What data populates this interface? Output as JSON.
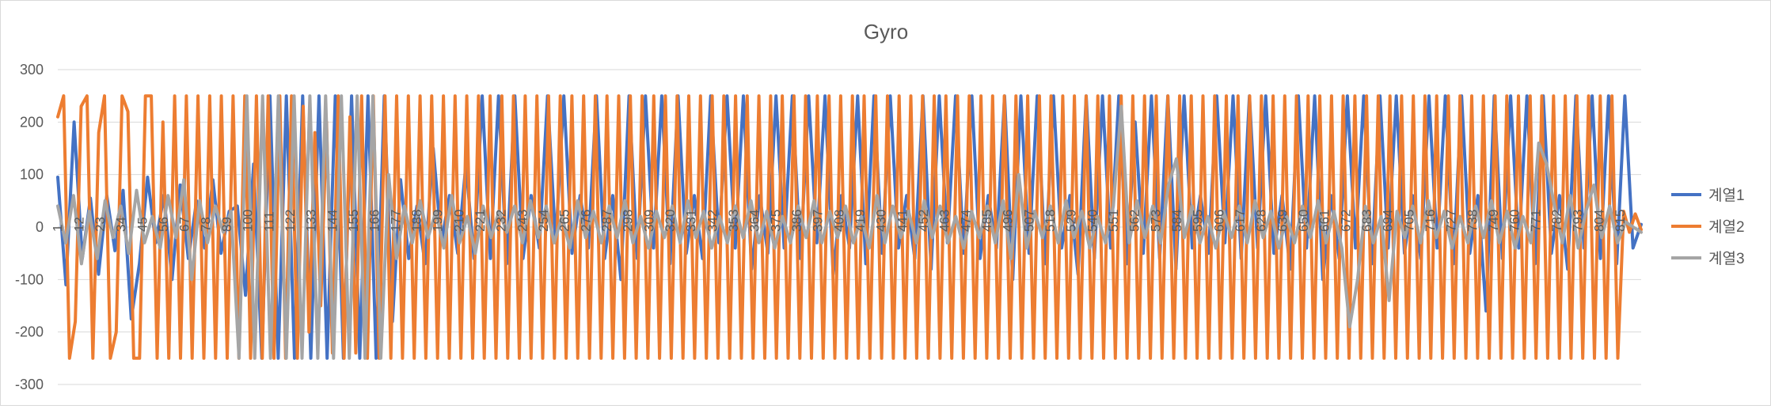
{
  "chart_data": {
    "type": "line",
    "title": "Gyro",
    "xlabel": "",
    "ylabel": "",
    "ylim": [
      -300,
      300
    ],
    "yticks": [
      300,
      200,
      100,
      0,
      -100,
      -200,
      -300
    ],
    "grid": true,
    "legend_position": "right",
    "x_count": 825,
    "x_tick_labels": [
      1,
      12,
      23,
      34,
      45,
      56,
      67,
      78,
      89,
      100,
      111,
      122,
      133,
      144,
      155,
      166,
      177,
      188,
      199,
      210,
      221,
      232,
      243,
      254,
      265,
      276,
      287,
      298,
      309,
      320,
      331,
      342,
      353,
      364,
      375,
      386,
      397,
      408,
      419,
      430,
      441,
      452,
      463,
      474,
      485,
      496,
      507,
      518,
      529,
      540,
      551,
      562,
      573,
      584,
      595,
      606,
      617,
      628,
      639,
      650,
      661,
      672,
      683,
      694,
      705,
      716,
      727,
      738,
      749,
      760,
      771,
      782,
      793,
      804,
      815
    ],
    "series": [
      {
        "name": "계열1",
        "color": "#4472c4",
        "values": [
          95,
          -110,
          200,
          -60,
          55,
          -90,
          60,
          -45,
          70,
          -175,
          -70,
          95,
          -30,
          60,
          -100,
          80,
          -60,
          50,
          -40,
          90,
          -50,
          30,
          40,
          -130,
          120,
          -250,
          250,
          -250,
          250,
          -250,
          250,
          -250,
          250,
          -250,
          250,
          -250,
          250,
          -250,
          250,
          -250,
          250,
          -180,
          90,
          -60,
          40,
          -70,
          150,
          -30,
          60,
          -50,
          120,
          -60,
          250,
          -60,
          250,
          -70,
          250,
          -60,
          60,
          -40,
          250,
          -30,
          250,
          -50,
          60,
          -40,
          250,
          -60,
          60,
          -100,
          250,
          -60,
          250,
          -40,
          250,
          -70,
          250,
          -50,
          60,
          -60,
          250,
          -30,
          250,
          -40,
          250,
          -80,
          60,
          -50,
          250,
          -40,
          250,
          -60,
          250,
          -30,
          250,
          -90,
          60,
          -40,
          250,
          -70,
          250,
          -50,
          250,
          -40,
          60,
          -60,
          250,
          -80,
          250,
          -30,
          250,
          -50,
          250,
          -60,
          60,
          -40,
          250,
          -100,
          250,
          -50,
          250,
          -70,
          250,
          -40,
          60,
          -90,
          250,
          -60,
          250,
          -40,
          250,
          -70,
          200,
          -50,
          250,
          -60,
          250,
          -80,
          250,
          -40,
          60,
          -50,
          250,
          -30,
          250,
          -60,
          250,
          -40,
          250,
          -50,
          60,
          -80,
          250,
          -40,
          250,
          -100,
          60,
          -60,
          250,
          -40,
          250,
          -70,
          250,
          -40,
          250,
          -50,
          60,
          -60,
          250,
          -40,
          250,
          -70,
          250,
          -50,
          60,
          -160,
          250,
          -60,
          250,
          -40,
          250,
          -70,
          250,
          -50,
          60,
          -80,
          250,
          -40,
          250,
          -60,
          250,
          -70,
          250,
          -40,
          5
        ],
        "source_note": "per-sample values down-sampled for rendering"
      },
      {
        "name": "계열2",
        "color": "#ed7d31",
        "values": [
          210,
          250,
          -250,
          -180,
          230,
          250,
          -250,
          180,
          250,
          -250,
          -200,
          250,
          220,
          -250,
          -250,
          250,
          250,
          -250,
          200,
          -250,
          250,
          -250,
          250,
          -250,
          250,
          -250,
          250,
          -250,
          250,
          -250,
          250,
          -250,
          250,
          -250,
          250,
          -250,
          250,
          -250,
          250,
          -250,
          250,
          -250,
          230,
          -200,
          180,
          -150,
          200,
          -240,
          250,
          -250,
          210,
          -240,
          250,
          -250,
          250,
          -250,
          250,
          -250,
          250,
          -250,
          250,
          -250,
          250,
          -250,
          250,
          -250,
          250,
          -250,
          250,
          -250,
          250,
          -250,
          250,
          -250,
          250,
          -250,
          250,
          -250,
          250,
          -250,
          250,
          -250,
          250,
          -250,
          250,
          -250,
          250,
          -250,
          250,
          -250,
          250,
          -250,
          250,
          -250,
          250,
          -250,
          250,
          -250,
          250,
          -250,
          250,
          -250,
          250,
          -250,
          250,
          -250,
          250,
          -250,
          250,
          -250,
          250,
          -250,
          250,
          -250,
          250,
          -250,
          250,
          -250,
          250,
          -250,
          250,
          -250,
          250,
          -250,
          250,
          -250,
          250,
          -250,
          250,
          -250,
          250,
          -250,
          250,
          -250,
          250,
          -250,
          250,
          -250,
          250,
          -250,
          250,
          -250,
          250,
          -250,
          250,
          -250,
          250,
          -250,
          250,
          -250,
          250,
          -250,
          250,
          -250,
          250,
          -250,
          250,
          -250,
          250,
          -250,
          250,
          -250,
          250,
          -250,
          250,
          -250,
          250,
          -250,
          250,
          -250,
          250,
          -250,
          250,
          -250,
          250,
          -250,
          250,
          -250,
          250,
          -250,
          250,
          -250,
          250,
          -250,
          250,
          -250,
          250,
          -250,
          250,
          -250,
          250,
          -250,
          250,
          -250,
          250,
          -250,
          250,
          -250,
          250,
          -250,
          250,
          -250,
          250,
          -250,
          250,
          -250,
          250,
          -250,
          250,
          -250,
          250,
          -250,
          250,
          -250,
          250,
          -250,
          250,
          -250,
          250,
          -250,
          250,
          -250,
          250,
          -250,
          250,
          -250,
          250,
          -250,
          250,
          -250,
          250,
          -250,
          250,
          -250,
          250,
          -250,
          250,
          -250,
          250,
          -250,
          250,
          -250,
          250,
          -250,
          250,
          -250,
          250,
          -250,
          250,
          -250,
          250,
          -250,
          250,
          -250,
          250,
          -250,
          250,
          -250,
          250,
          -250,
          250,
          -250,
          250,
          -250,
          250,
          -250,
          250,
          -250,
          30,
          -10,
          25,
          -5
        ]
      },
      {
        "name": "계열3",
        "color": "#a5a5a5",
        "values": [
          40,
          -30,
          60,
          -70,
          30,
          -60,
          50,
          -20,
          40,
          -50,
          70,
          -30,
          20,
          -40,
          60,
          -20,
          90,
          -100,
          50,
          -30,
          40,
          -10,
          30,
          -250,
          250,
          -250,
          250,
          -250,
          250,
          -250,
          250,
          -250,
          250,
          -250,
          250,
          -250,
          250,
          -250,
          250,
          -250,
          250,
          -250,
          100,
          -60,
          40,
          -30,
          50,
          -20,
          30,
          -40,
          60,
          -30,
          20,
          -50,
          40,
          -20,
          30,
          -10,
          40,
          -30,
          50,
          -20,
          40,
          -30,
          20,
          -40,
          50,
          -20,
          30,
          -30,
          40,
          -20,
          50,
          -30,
          20,
          -40,
          30,
          -20,
          40,
          -30,
          50,
          -20,
          30,
          -40,
          20,
          -30,
          40,
          -20,
          50,
          -30,
          30,
          -40,
          20,
          -30,
          40,
          -20,
          50,
          -30,
          30,
          -20,
          40,
          -30,
          20,
          -40,
          60,
          -30,
          40,
          -20,
          30,
          -30,
          50,
          -20,
          40,
          -30,
          20,
          -40,
          30,
          -20,
          40,
          -30,
          50,
          -60,
          100,
          -40,
          30,
          -20,
          40,
          -30,
          50,
          -20,
          30,
          -40,
          20,
          -30,
          40,
          230,
          -30,
          50,
          -20,
          40,
          -30,
          80,
          130,
          -20,
          40,
          -30,
          20,
          -40,
          30,
          -20,
          40,
          -30,
          50,
          -20,
          30,
          -40,
          20,
          -30,
          40,
          -20,
          50,
          -30,
          30,
          -40,
          -190,
          -100,
          40,
          -30,
          20,
          -140,
          30,
          -20,
          40,
          -30,
          50,
          -20,
          30,
          -40,
          20,
          -30,
          40,
          -20,
          50,
          -30,
          30,
          -40,
          20,
          -30,
          160,
          120,
          40,
          -30,
          60,
          -40,
          30,
          80,
          -20,
          40,
          -30,
          10,
          0,
          -10
        ]
      }
    ]
  }
}
